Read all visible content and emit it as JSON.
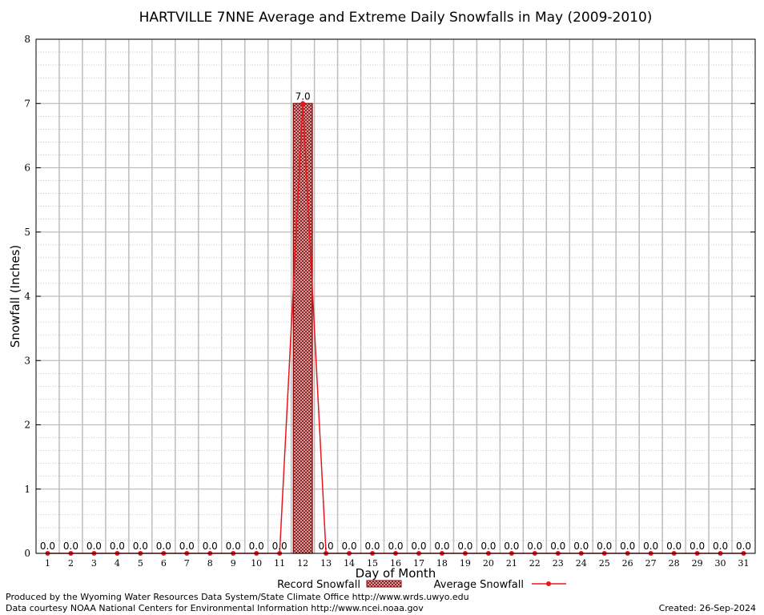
{
  "chart_data": {
    "type": "bar",
    "title": "HARTVILLE 7NNE Average and Extreme Daily Snowfalls in May (2009-2010)",
    "xlabel": "Day of Month",
    "ylabel": "Snowfall (Inches)",
    "ylim": [
      0,
      8
    ],
    "yticks": [
      0,
      1,
      2,
      3,
      4,
      5,
      6,
      7,
      8
    ],
    "categories": [
      "1",
      "2",
      "3",
      "4",
      "5",
      "6",
      "7",
      "8",
      "9",
      "10",
      "11",
      "12",
      "13",
      "14",
      "15",
      "16",
      "17",
      "18",
      "19",
      "20",
      "21",
      "22",
      "23",
      "24",
      "25",
      "26",
      "27",
      "28",
      "29",
      "30",
      "31"
    ],
    "series": [
      {
        "name": "Record Snowfall",
        "type": "bar",
        "color": "#8b0000",
        "values": [
          0,
          0,
          0,
          0,
          0,
          0,
          0,
          0,
          0,
          0,
          0,
          7.0,
          0,
          0,
          0,
          0,
          0,
          0,
          0,
          0,
          0,
          0,
          0,
          0,
          0,
          0,
          0,
          0,
          0,
          0,
          0
        ]
      },
      {
        "name": "Average Snowfall",
        "type": "line",
        "color": "#e8161b",
        "values": [
          0,
          0,
          0,
          0,
          0,
          0,
          0,
          0,
          0,
          0,
          0,
          7.0,
          0,
          0,
          0,
          0,
          0,
          0,
          0,
          0,
          0,
          0,
          0,
          0,
          0,
          0,
          0,
          0,
          0,
          0,
          0
        ]
      }
    ],
    "data_labels": [
      "0.0",
      "0.0",
      "0.0",
      "0.0",
      "0.0",
      "0.0",
      "0.0",
      "0.0",
      "0.0",
      "0.0",
      "0.0",
      "7.0",
      "0.0",
      "0.0",
      "0.0",
      "0.0",
      "0.0",
      "0.0",
      "0.0",
      "0.0",
      "0.0",
      "0.0",
      "0.0",
      "0.0",
      "0.0",
      "0.0",
      "0.0",
      "0.0",
      "0.0",
      "0.0",
      "0.0"
    ],
    "grid": true,
    "legend_position": "bottom"
  },
  "footer": {
    "produced_by": "Produced by the Wyoming Water Resources Data System/State Climate Office http://www.wrds.uwyo.edu",
    "courtesy": "Data courtesy NOAA National Centers for Environmental Information http://www.ncei.noaa.gov",
    "created": "Created:  26-Sep-2024"
  }
}
